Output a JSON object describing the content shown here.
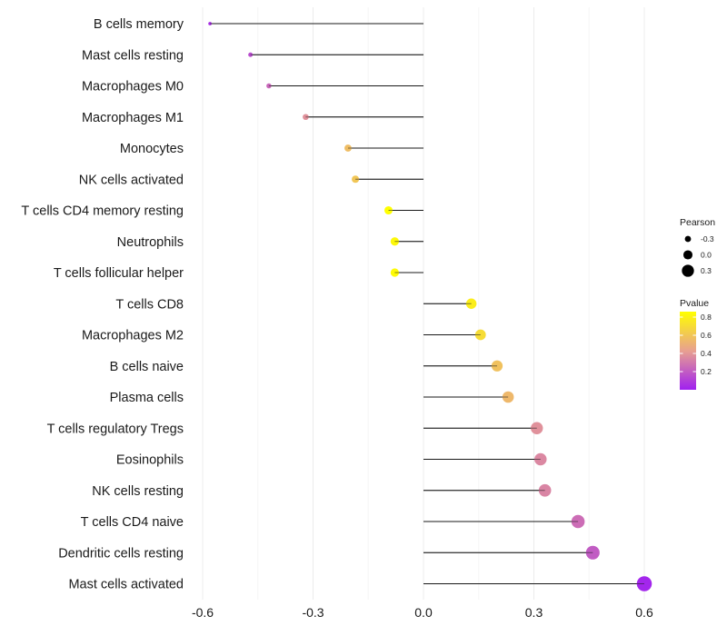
{
  "chart_data": {
    "type": "lollipop",
    "title": "",
    "xlabel": "",
    "ylabel": "",
    "xlim": [
      -0.63,
      0.63
    ],
    "xticks": [
      -0.6,
      -0.3,
      0.0,
      0.3,
      0.6
    ],
    "xtick_labels": [
      "-0.6",
      "-0.3",
      "0.0",
      "0.3",
      "0.6"
    ],
    "grid": true,
    "legend_position": "right",
    "size_legend": {
      "title": "Pearson",
      "entries": [
        {
          "value": -0.3,
          "label": "-0.3"
        },
        {
          "value": 0.0,
          "label": "0.0"
        },
        {
          "value": 0.3,
          "label": "0.3"
        }
      ]
    },
    "color_legend": {
      "title": "Pvalue",
      "ticks": [
        {
          "value": 0.8,
          "label": "0.8"
        },
        {
          "value": 0.6,
          "label": "0.6"
        },
        {
          "value": 0.4,
          "label": "0.4"
        },
        {
          "value": 0.2,
          "label": "0.2"
        }
      ],
      "range": [
        0.0,
        0.86
      ],
      "low_color": "#a020f0",
      "mid_color": "#e8a090",
      "high_color": "#ffff00"
    },
    "points": [
      {
        "category": "B cells memory",
        "pearson": -0.58,
        "pvalue": 0.05
      },
      {
        "category": "Mast cells resting",
        "pearson": -0.47,
        "pvalue": 0.15
      },
      {
        "category": "Macrophages M0",
        "pearson": -0.42,
        "pvalue": 0.24
      },
      {
        "category": "Macrophages M1",
        "pearson": -0.32,
        "pvalue": 0.38
      },
      {
        "category": "Monocytes",
        "pearson": -0.205,
        "pvalue": 0.56
      },
      {
        "category": "NK cells activated",
        "pearson": -0.185,
        "pvalue": 0.6
      },
      {
        "category": "T cells CD4 memory resting",
        "pearson": -0.095,
        "pvalue": 0.86
      },
      {
        "category": "Neutrophils",
        "pearson": -0.078,
        "pvalue": 0.83
      },
      {
        "category": "T cells follicular helper",
        "pearson": -0.078,
        "pvalue": 0.84
      },
      {
        "category": "T cells CD8",
        "pearson": 0.13,
        "pvalue": 0.78
      },
      {
        "category": "Macrophages M2",
        "pearson": 0.155,
        "pvalue": 0.7
      },
      {
        "category": "B cells naive",
        "pearson": 0.2,
        "pvalue": 0.58
      },
      {
        "category": "Plasma cells",
        "pearson": 0.23,
        "pvalue": 0.54
      },
      {
        "category": "T cells regulatory  Tregs",
        "pearson": 0.308,
        "pvalue": 0.38
      },
      {
        "category": "Eosinophils",
        "pearson": 0.318,
        "pvalue": 0.35
      },
      {
        "category": "NK cells resting",
        "pearson": 0.33,
        "pvalue": 0.34
      },
      {
        "category": "T cells CD4 naive",
        "pearson": 0.42,
        "pvalue": 0.26
      },
      {
        "category": "Dendritic cells resting",
        "pearson": 0.46,
        "pvalue": 0.2
      },
      {
        "category": "Mast cells activated",
        "pearson": 0.6,
        "pvalue": 0.02
      }
    ]
  }
}
